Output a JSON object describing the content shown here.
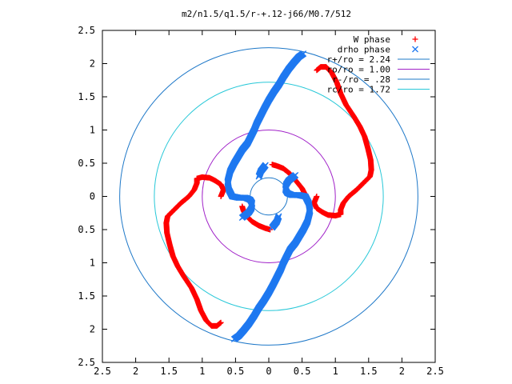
{
  "chart_data": {
    "type": "scatter",
    "title": "m2/n1.5/q1.5/r-+.12-j66/M0.7/512",
    "xlim": [
      -2.5,
      2.5
    ],
    "ylim": [
      -2.5,
      2.5
    ],
    "xtick_values": [
      -2.5,
      -2,
      -1.5,
      -1,
      -0.5,
      0,
      0.5,
      1,
      1.5,
      2,
      2.5
    ],
    "xtick_labels": [
      "2.5",
      "2",
      "1.5",
      "1",
      "0.5",
      "0",
      "0.5",
      "1",
      "1.5",
      "2",
      "2.5"
    ],
    "ytick_values": [
      2.5,
      2,
      1.5,
      1,
      0.5,
      0,
      -0.5,
      -1,
      -1.5,
      -2,
      -2.5
    ],
    "ytick_labels": [
      "2.5",
      "2",
      "1.5",
      "1",
      "0.5",
      "0",
      "0.5",
      "1",
      "1.5",
      "2",
      "2.5"
    ],
    "legend_position": "top-right",
    "series": [
      {
        "name": "W phase",
        "marker": "+",
        "color": "#ff0000",
        "x": [
          0.72,
          0.68,
          0.72,
          0.81,
          0.89,
          1.0,
          1.08,
          1.08,
          1.12,
          1.2,
          1.32,
          1.44,
          1.52,
          1.54,
          1.53,
          1.49,
          1.44,
          1.37,
          1.28,
          1.16,
          1.08,
          1.02,
          0.94,
          0.86,
          0.78,
          0.72,
          -0.72,
          -0.68,
          -0.72,
          -0.81,
          -0.89,
          -1.0,
          -1.08,
          -1.08,
          -1.12,
          -1.2,
          -1.32,
          -1.44,
          -1.52,
          -1.54,
          -1.53,
          -1.49,
          -1.44,
          -1.37,
          -1.28,
          -1.16,
          -1.08,
          -1.02,
          -0.94,
          -0.86,
          -0.78,
          -0.72,
          0.02,
          -0.05,
          -0.15,
          -0.25,
          -0.33,
          -0.38,
          -0.4,
          0.05,
          0.12,
          0.22,
          0.32,
          0.42,
          0.5,
          0.55
        ],
        "y": [
          0.0,
          -0.1,
          -0.18,
          -0.24,
          -0.28,
          -0.29,
          -0.27,
          -0.2,
          -0.1,
          0.0,
          0.1,
          0.22,
          0.3,
          0.4,
          0.55,
          0.72,
          0.9,
          1.05,
          1.2,
          1.38,
          1.55,
          1.72,
          1.87,
          1.95,
          1.95,
          1.9,
          0.0,
          0.1,
          0.18,
          0.24,
          0.28,
          0.29,
          0.27,
          0.2,
          0.1,
          0.0,
          -0.1,
          -0.22,
          -0.3,
          -0.4,
          -0.55,
          -0.72,
          -0.9,
          -1.05,
          -1.2,
          -1.38,
          -1.55,
          -1.72,
          -1.87,
          -1.95,
          -1.95,
          -1.9,
          -0.5,
          -0.48,
          -0.44,
          -0.38,
          -0.3,
          -0.22,
          -0.15,
          0.48,
          0.46,
          0.42,
          0.34,
          0.22,
          0.12,
          0.02
        ]
      },
      {
        "name": "drho phase",
        "marker": "x",
        "color": "#1e78f0",
        "x": [
          0.52,
          0.45,
          0.38,
          0.3,
          0.22,
          0.15,
          0.08,
          0.0,
          -0.07,
          -0.13,
          -0.18,
          -0.22,
          -0.27,
          -0.32,
          -0.4,
          -0.46,
          -0.52,
          -0.58,
          -0.62,
          -0.6,
          -0.55,
          -0.45,
          -0.35,
          -0.28,
          -0.25,
          -0.26,
          -0.3,
          -0.35,
          -0.4,
          -0.52,
          -0.45,
          -0.38,
          -0.3,
          -0.22,
          -0.15,
          -0.08,
          0.0,
          0.07,
          0.13,
          0.18,
          0.22,
          0.27,
          0.32,
          0.4,
          0.46,
          0.52,
          0.58,
          0.62,
          0.6,
          0.55,
          0.45,
          0.35,
          0.28,
          0.25,
          0.26,
          0.3,
          0.35,
          0.4,
          -0.15,
          -0.12,
          -0.05,
          0.15,
          0.12,
          0.05
        ],
        "y": [
          2.15,
          2.1,
          2.02,
          1.92,
          1.8,
          1.68,
          1.58,
          1.45,
          1.32,
          1.2,
          1.1,
          1.0,
          0.9,
          0.8,
          0.7,
          0.6,
          0.5,
          0.38,
          0.22,
          0.1,
          0.0,
          -0.02,
          -0.02,
          -0.05,
          -0.1,
          -0.18,
          -0.24,
          -0.28,
          -0.32,
          -2.15,
          -2.1,
          -2.02,
          -1.92,
          -1.8,
          -1.68,
          -1.58,
          -1.45,
          -1.32,
          -1.2,
          -1.1,
          -1.0,
          -0.9,
          -0.8,
          -0.7,
          -0.6,
          -0.5,
          -0.38,
          -0.22,
          -0.1,
          0.0,
          0.02,
          0.02,
          0.05,
          0.1,
          0.18,
          0.24,
          0.28,
          0.32,
          0.3,
          0.38,
          0.47,
          -0.3,
          -0.38,
          -0.47
        ]
      },
      {
        "name": "r+/ro = 2.24",
        "type": "circle",
        "radius": 2.24,
        "color": "#1e78c8"
      },
      {
        "name": "ro/ro = 1.00",
        "type": "circle",
        "radius": 1.0,
        "color": "#a020c8"
      },
      {
        "name": "r-/ro = .28",
        "type": "circle",
        "radius": 0.28,
        "color": "#1e78c8"
      },
      {
        "name": "rc/ro = 1.72",
        "type": "circle",
        "radius": 1.72,
        "color": "#28c8d8"
      }
    ]
  }
}
